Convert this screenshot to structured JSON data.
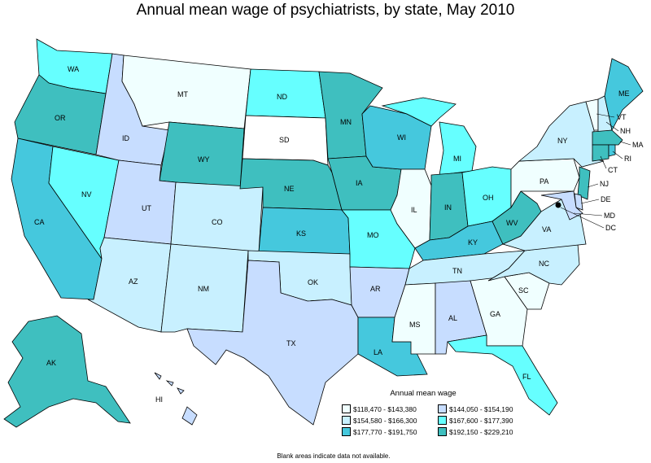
{
  "title": "Annual mean wage of psychiatrists, by state, May 2010",
  "colors": {
    "c1": "#f0ffff",
    "c2": "#c7ddff",
    "c3": "#c8f0ff",
    "c4": "#66ffff",
    "c5": "#45c8dd",
    "c6": "#3fbfbf",
    "blank": "#ffffff",
    "border": "#000000"
  },
  "legend": {
    "title": "Annual mean wage",
    "items": [
      {
        "label": "$118,470 - $143,380",
        "color": "#f0ffff"
      },
      {
        "label": "$144,050 - $154,190",
        "color": "#c7ddff"
      },
      {
        "label": "$154,580 - $166,300",
        "color": "#c8f0ff"
      },
      {
        "label": "$167,600 - $177,390",
        "color": "#66ffff"
      },
      {
        "label": "$177,770 - $191,750",
        "color": "#45c8dd"
      },
      {
        "label": "$192,150 - $229,210",
        "color": "#3fbfbf"
      }
    ]
  },
  "footnote": "Blank areas indicate data not available.",
  "states": [
    {
      "abbr": "WA",
      "fill": "#66ffff"
    },
    {
      "abbr": "OR",
      "fill": "#3fbfbf"
    },
    {
      "abbr": "CA",
      "fill": "#45c8dd"
    },
    {
      "abbr": "NV",
      "fill": "#66ffff"
    },
    {
      "abbr": "ID",
      "fill": "#c7ddff"
    },
    {
      "abbr": "MT",
      "fill": "#f0ffff"
    },
    {
      "abbr": "WY",
      "fill": "#3fbfbf"
    },
    {
      "abbr": "UT",
      "fill": "#c7ddff"
    },
    {
      "abbr": "CO",
      "fill": "#c8f0ff"
    },
    {
      "abbr": "AZ",
      "fill": "#c8f0ff"
    },
    {
      "abbr": "NM",
      "fill": "#c8f0ff"
    },
    {
      "abbr": "ND",
      "fill": "#66ffff"
    },
    {
      "abbr": "SD",
      "fill": "#ffffff"
    },
    {
      "abbr": "NE",
      "fill": "#3fbfbf"
    },
    {
      "abbr": "KS",
      "fill": "#45c8dd"
    },
    {
      "abbr": "OK",
      "fill": "#c8f0ff"
    },
    {
      "abbr": "TX",
      "fill": "#c7ddff"
    },
    {
      "abbr": "MN",
      "fill": "#3fbfbf"
    },
    {
      "abbr": "IA",
      "fill": "#3fbfbf"
    },
    {
      "abbr": "MO",
      "fill": "#66ffff"
    },
    {
      "abbr": "AR",
      "fill": "#c7ddff"
    },
    {
      "abbr": "LA",
      "fill": "#45c8dd"
    },
    {
      "abbr": "WI",
      "fill": "#45c8dd"
    },
    {
      "abbr": "IL",
      "fill": "#f0ffff"
    },
    {
      "abbr": "MI",
      "fill": "#66ffff"
    },
    {
      "abbr": "IN",
      "fill": "#3fbfbf"
    },
    {
      "abbr": "OH",
      "fill": "#66ffff"
    },
    {
      "abbr": "KY",
      "fill": "#45c8dd"
    },
    {
      "abbr": "TN",
      "fill": "#c8f0ff"
    },
    {
      "abbr": "MS",
      "fill": "#f0ffff"
    },
    {
      "abbr": "AL",
      "fill": "#c7ddff"
    },
    {
      "abbr": "GA",
      "fill": "#f0ffff"
    },
    {
      "abbr": "FL",
      "fill": "#66ffff"
    },
    {
      "abbr": "SC",
      "fill": "#f0ffff"
    },
    {
      "abbr": "NC",
      "fill": "#c8f0ff"
    },
    {
      "abbr": "VA",
      "fill": "#c8f0ff"
    },
    {
      "abbr": "WV",
      "fill": "#3fbfbf"
    },
    {
      "abbr": "PA",
      "fill": "#f0ffff"
    },
    {
      "abbr": "NY",
      "fill": "#c8f0ff"
    },
    {
      "abbr": "VT",
      "fill": "#f0ffff"
    },
    {
      "abbr": "NH",
      "fill": "#c8f0ff"
    },
    {
      "abbr": "ME",
      "fill": "#45c8dd"
    },
    {
      "abbr": "MA",
      "fill": "#3fbfbf"
    },
    {
      "abbr": "RI",
      "fill": "#45c8dd"
    },
    {
      "abbr": "CT",
      "fill": "#3fbfbf"
    },
    {
      "abbr": "NJ",
      "fill": "#3fbfbf"
    },
    {
      "abbr": "DE",
      "fill": "#c7ddff"
    },
    {
      "abbr": "MD",
      "fill": "#c7ddff"
    },
    {
      "abbr": "DC",
      "fill": "#000000"
    },
    {
      "abbr": "AK",
      "fill": "#3fbfbf"
    },
    {
      "abbr": "HI",
      "fill": "#c7ddff"
    }
  ]
}
